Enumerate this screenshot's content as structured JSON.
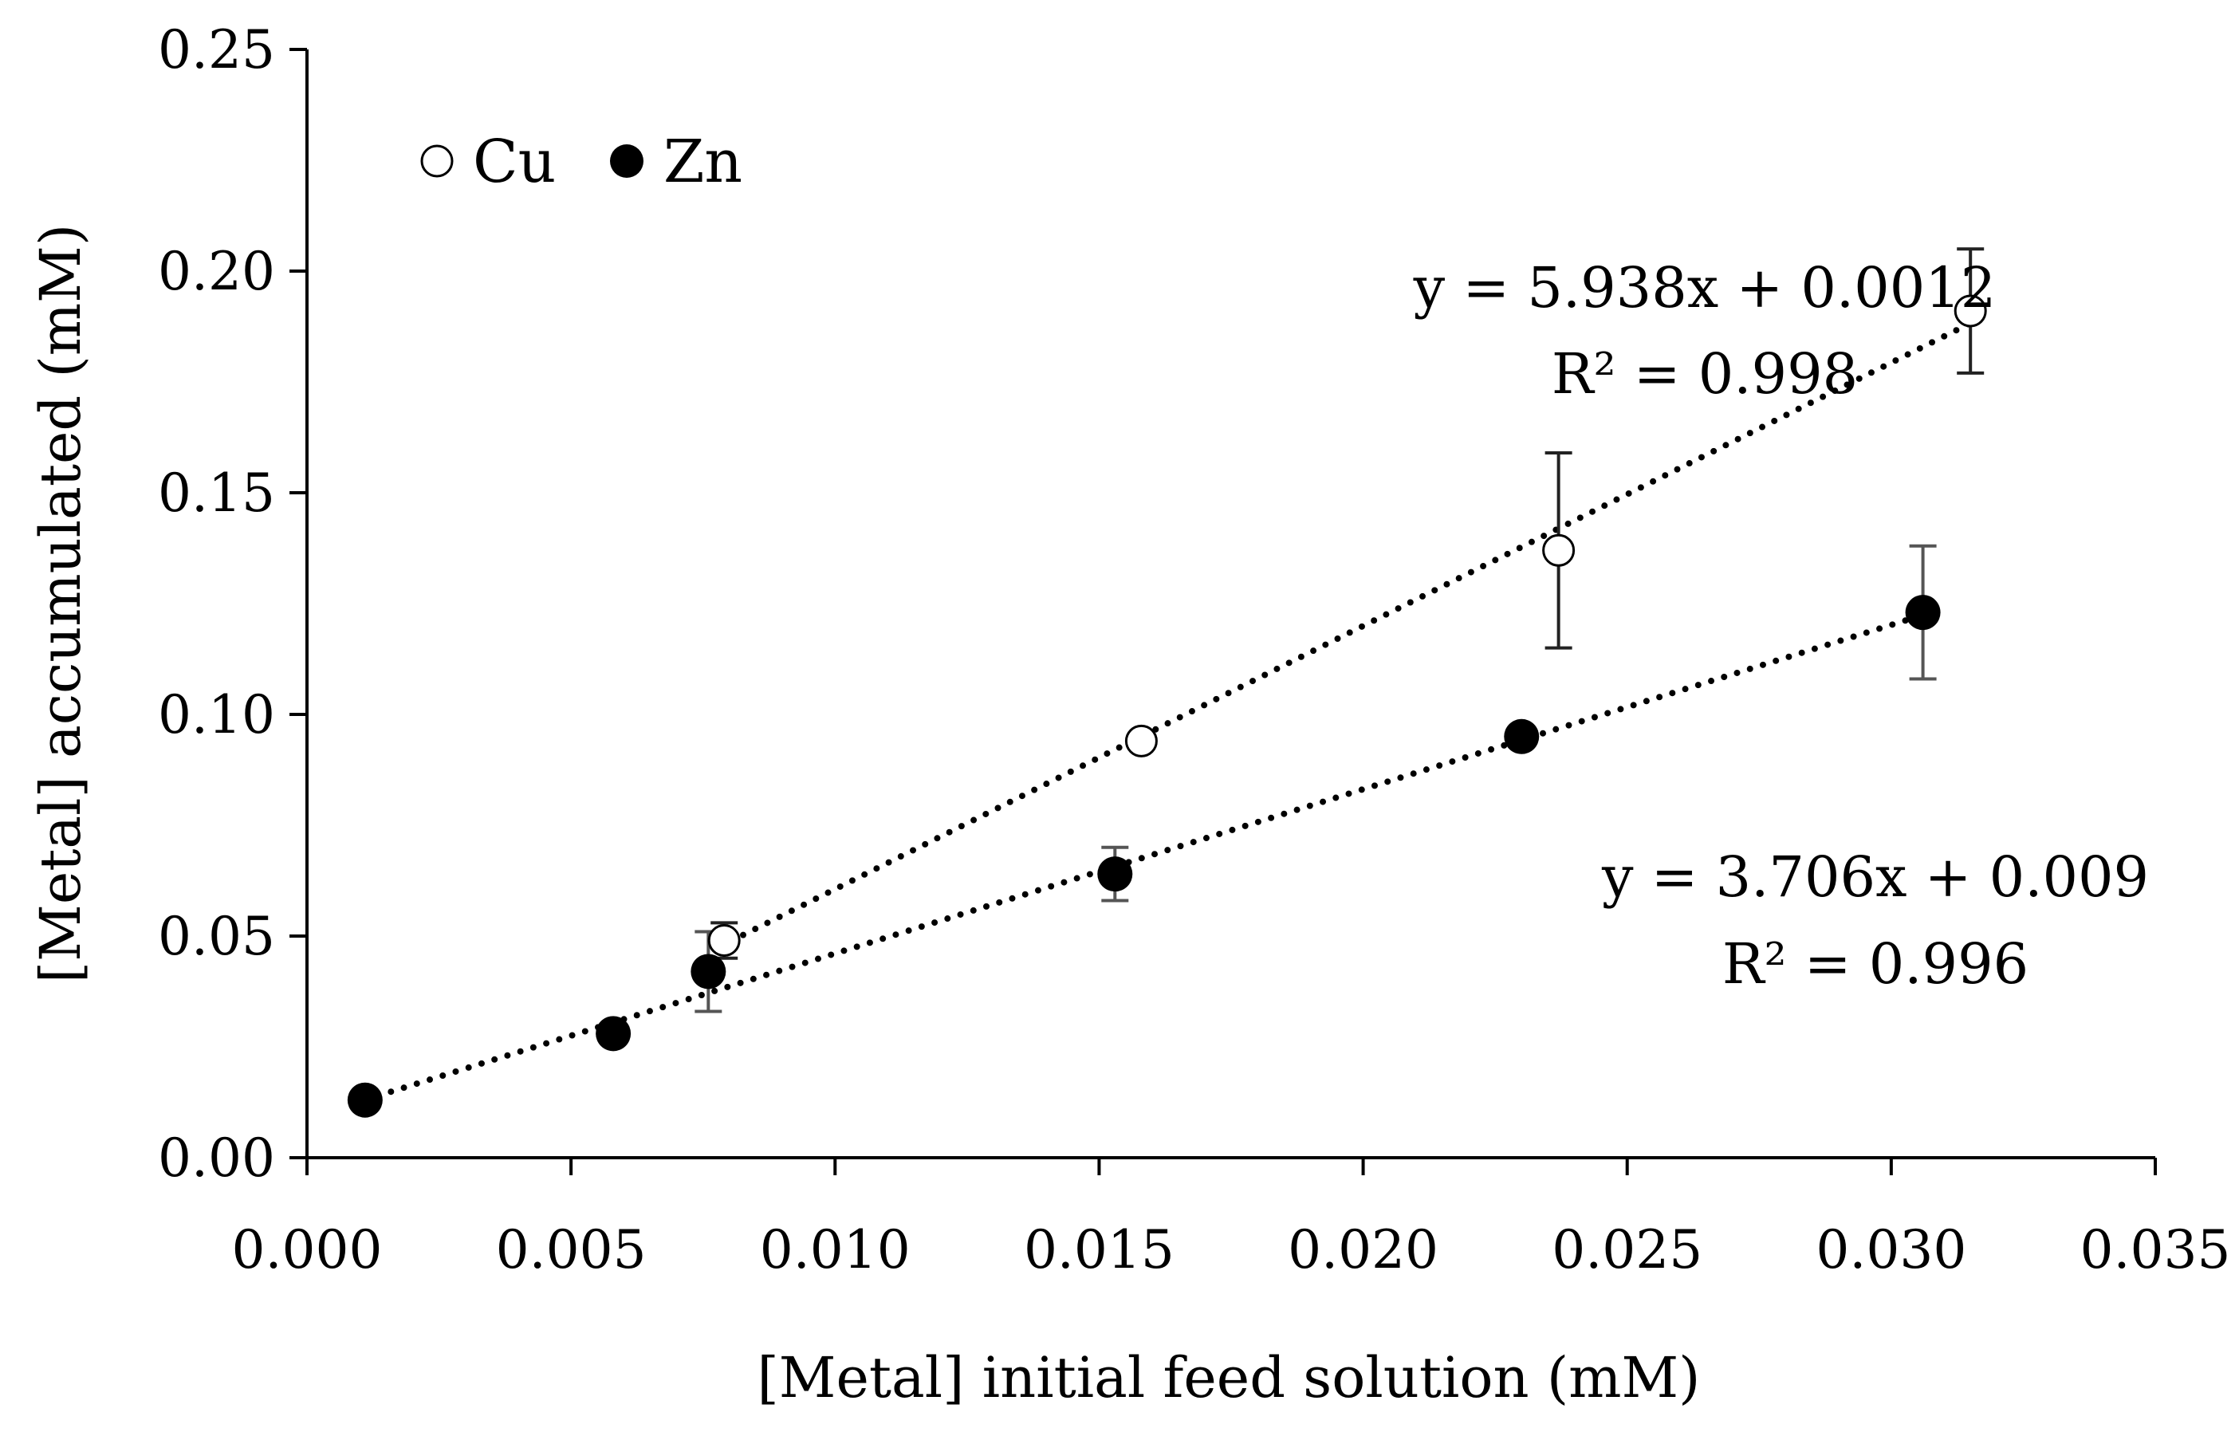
{
  "chart_data": {
    "type": "scatter",
    "xlabel": "[Metal] initial feed solution (mM)",
    "ylabel": "[Metal] accumulated (mM)",
    "xlim": [
      0.0,
      0.035
    ],
    "ylim": [
      0.0,
      0.25
    ],
    "x_ticks": [
      "0.000",
      "0.005",
      "0.010",
      "0.015",
      "0.020",
      "0.025",
      "0.030",
      "0.035"
    ],
    "y_ticks": [
      "0.00",
      "0.05",
      "0.10",
      "0.15",
      "0.20",
      "0.25"
    ],
    "grid": false,
    "legend_position": "top-left",
    "series": [
      {
        "name": "Cu",
        "marker": "open-circle",
        "color": "#000000",
        "x": [
          0.0079,
          0.0158,
          0.0237,
          0.0315
        ],
        "y": [
          0.049,
          0.094,
          0.137,
          0.191
        ],
        "error": [
          0.004,
          0.0,
          0.022,
          0.014
        ],
        "trendline": {
          "slope": 5.938,
          "intercept": 0.0012,
          "x_range": [
            0.0078,
            0.0315
          ],
          "equation": "y = 5.938x + 0.0012",
          "r2": "R² = 0.998"
        }
      },
      {
        "name": "Zn",
        "marker": "filled-circle",
        "color": "#000000",
        "x": [
          0.0011,
          0.0058,
          0.0076,
          0.0153,
          0.023,
          0.0306
        ],
        "y": [
          0.013,
          0.028,
          0.042,
          0.064,
          0.095,
          0.123
        ],
        "error": [
          0.0,
          0.0,
          0.009,
          0.006,
          0.0,
          0.015
        ],
        "trendline": {
          "slope": 3.706,
          "intercept": 0.009,
          "x_range": [
            0.0011,
            0.0306
          ],
          "equation": "y = 3.706x + 0.009",
          "r2": "R² = 0.996"
        }
      }
    ]
  }
}
